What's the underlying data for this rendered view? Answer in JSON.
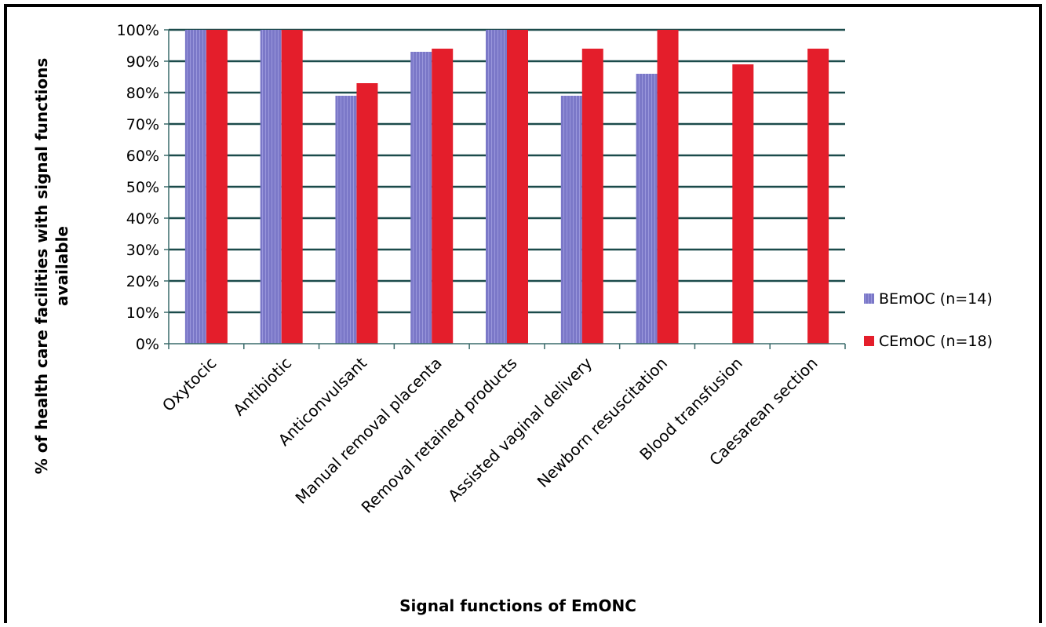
{
  "chart_data": {
    "type": "bar",
    "title": "",
    "xlabel": "Signal functions of EmONC",
    "ylabel": "% of health care facilities with signal functions available",
    "ylim": [
      0,
      100
    ],
    "yticks": [
      "0%",
      "10%",
      "20%",
      "30%",
      "40%",
      "50%",
      "60%",
      "70%",
      "80%",
      "90%",
      "100%"
    ],
    "grid": true,
    "legend_position": "right",
    "categories": [
      "Oxytocic",
      "Antibiotic",
      "Anticonvulsant",
      "Manual removal placenta",
      "Removal retained products",
      "Assisted vaginal delivery",
      "Newborn resuscitation",
      "Blood transfusion",
      "Caesarean section"
    ],
    "series": [
      {
        "name": "BEmOC (n=14)",
        "color": "#7b78c8",
        "values": [
          100,
          100,
          79,
          93,
          100,
          79,
          86,
          0,
          0
        ]
      },
      {
        "name": "CEmOC (n=18)",
        "color": "#e41e2b",
        "values": [
          100,
          100,
          83,
          94,
          100,
          94,
          100,
          89,
          94
        ]
      }
    ]
  }
}
